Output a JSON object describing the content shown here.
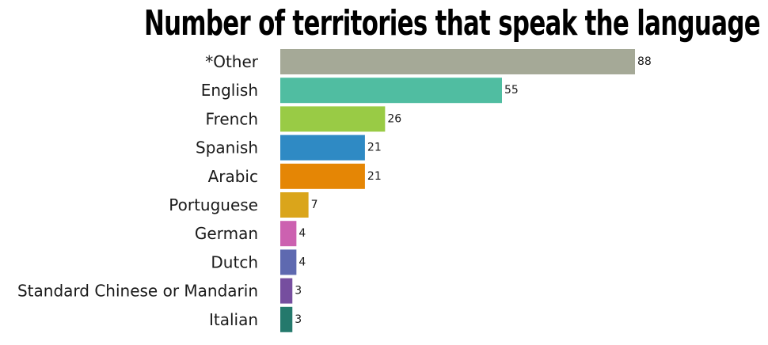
{
  "chart_data": {
    "type": "bar",
    "orientation": "horizontal",
    "title": "Number of territories that speak the language",
    "categories": [
      "*Other",
      "English",
      "French",
      "Spanish",
      "Arabic",
      "Portuguese",
      "German",
      "Dutch",
      "Standard Chinese or Mandarin",
      "Italian"
    ],
    "values": [
      88,
      55,
      26,
      21,
      21,
      7,
      4,
      4,
      3,
      3
    ],
    "colors": [
      "#a5a997",
      "#50bda1",
      "#99cb45",
      "#2f8ac4",
      "#e58605",
      "#daa51b",
      "#cc61b0",
      "#5e69b0",
      "#764e9f",
      "#24796c"
    ],
    "xlim": [
      0,
      88
    ],
    "grid": false,
    "legend": "none",
    "data_labels": true
  }
}
